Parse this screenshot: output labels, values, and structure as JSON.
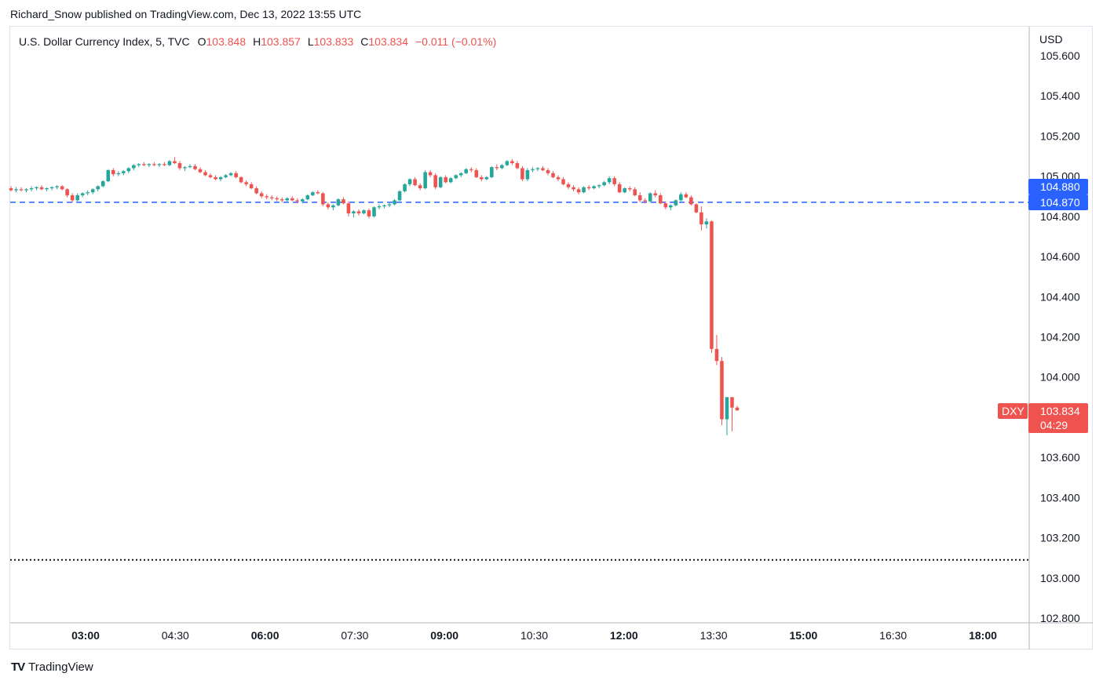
{
  "header": {
    "publisher_line": "Richard_Snow published on TradingView.com, Dec 13, 2022 13:55 UTC"
  },
  "legend": {
    "symbol": "U.S. Dollar Currency Index, 5, TVC",
    "open_label": "O",
    "open": "103.848",
    "high_label": "H",
    "high": "103.857",
    "low_label": "L",
    "low": "103.833",
    "close_label": "C",
    "close": "103.834",
    "change": "−0.011 (−0.01%)"
  },
  "price_axis": {
    "currency": "USD"
  },
  "badges": {
    "upper_price": "104.880",
    "line_price": "104.870",
    "ticker": "DXY",
    "last_price": "103.834",
    "countdown": "04:29"
  },
  "footer": {
    "brand_mark": "TV",
    "brand": "TradingView"
  },
  "colors": {
    "up": "#26a69a",
    "down": "#ef5350",
    "accent": "#2962ff",
    "line": "#2962ff"
  },
  "chart_data": {
    "type": "candlestick",
    "ylim": [
      102.8,
      105.65
    ],
    "y_ticks": [
      "105.600",
      "105.400",
      "105.200",
      "105.000",
      "104.800",
      "104.600",
      "104.400",
      "104.200",
      "104.000",
      "103.600",
      "103.400",
      "103.200",
      "103.000",
      "102.800"
    ],
    "x_ticks": [
      {
        "label": "03:00",
        "bold": true
      },
      {
        "label": "04:30",
        "bold": false
      },
      {
        "label": "06:00",
        "bold": true
      },
      {
        "label": "07:30",
        "bold": false
      },
      {
        "label": "09:00",
        "bold": true
      },
      {
        "label": "10:30",
        "bold": false
      },
      {
        "label": "12:00",
        "bold": true
      },
      {
        "label": "13:30",
        "bold": false
      },
      {
        "label": "15:00",
        "bold": true
      },
      {
        "label": "16:30",
        "bold": false
      },
      {
        "label": "18:00",
        "bold": true
      }
    ],
    "horizontal_lines": [
      {
        "price": 104.87,
        "style": "dashed",
        "color": "#2962ff"
      },
      {
        "price": 103.09,
        "style": "dotted",
        "color": "#131722"
      }
    ],
    "candles": [
      [
        104.94,
        104.95,
        104.925,
        104.93
      ],
      [
        104.93,
        104.945,
        104.92,
        104.935
      ],
      [
        104.935,
        104.945,
        104.925,
        104.93
      ],
      [
        104.93,
        104.94,
        104.92,
        104.935
      ],
      [
        104.935,
        104.95,
        104.925,
        104.94
      ],
      [
        104.94,
        104.95,
        104.93,
        104.945
      ],
      [
        104.945,
        104.955,
        104.93,
        104.935
      ],
      [
        104.935,
        104.945,
        104.925,
        104.94
      ],
      [
        104.94,
        104.95,
        104.93,
        104.945
      ],
      [
        104.945,
        104.955,
        104.935,
        104.95
      ],
      [
        104.95,
        104.955,
        104.93,
        104.935
      ],
      [
        104.935,
        104.94,
        104.895,
        104.905
      ],
      [
        104.905,
        104.915,
        104.87,
        104.88
      ],
      [
        104.88,
        104.915,
        104.875,
        104.905
      ],
      [
        104.905,
        104.92,
        104.895,
        104.915
      ],
      [
        104.915,
        104.93,
        104.905,
        104.92
      ],
      [
        104.92,
        104.94,
        104.91,
        104.935
      ],
      [
        104.935,
        104.955,
        104.925,
        104.95
      ],
      [
        104.95,
        104.98,
        104.945,
        104.975
      ],
      [
        104.975,
        105.035,
        104.97,
        105.03
      ],
      [
        105.03,
        105.04,
        105.0,
        105.01
      ],
      [
        105.01,
        105.025,
        105.0,
        105.015
      ],
      [
        105.015,
        105.03,
        105.005,
        105.025
      ],
      [
        105.025,
        105.045,
        105.015,
        105.04
      ],
      [
        105.04,
        105.06,
        105.03,
        105.055
      ],
      [
        105.055,
        105.065,
        105.045,
        105.06
      ],
      [
        105.06,
        105.07,
        105.05,
        105.055
      ],
      [
        105.055,
        105.065,
        105.045,
        105.06
      ],
      [
        105.06,
        105.07,
        105.05,
        105.055
      ],
      [
        105.055,
        105.065,
        105.045,
        105.06
      ],
      [
        105.06,
        105.07,
        105.05,
        105.055
      ],
      [
        105.055,
        105.08,
        105.05,
        105.075
      ],
      [
        105.075,
        105.095,
        105.06,
        105.065
      ],
      [
        105.065,
        105.075,
        105.03,
        105.04
      ],
      [
        105.04,
        105.05,
        105.025,
        105.045
      ],
      [
        105.045,
        105.06,
        105.04,
        105.05
      ],
      [
        105.05,
        105.06,
        105.03,
        105.035
      ],
      [
        105.035,
        105.045,
        105.015,
        105.02
      ],
      [
        105.02,
        105.03,
        105.0,
        105.005
      ],
      [
        105.005,
        105.015,
        104.99,
        104.995
      ],
      [
        104.995,
        105.005,
        104.98,
        104.985
      ],
      [
        104.985,
        105.0,
        104.975,
        104.995
      ],
      [
        104.995,
        105.01,
        104.99,
        105.005
      ],
      [
        105.005,
        105.02,
        105.0,
        105.015
      ],
      [
        105.015,
        105.025,
        104.99,
        104.995
      ],
      [
        104.995,
        105.0,
        104.965,
        104.97
      ],
      [
        104.97,
        104.98,
        104.95,
        104.96
      ],
      [
        104.96,
        104.97,
        104.935,
        104.94
      ],
      [
        104.94,
        104.95,
        104.91,
        104.915
      ],
      [
        104.915,
        104.925,
        104.89,
        104.9
      ],
      [
        104.9,
        104.91,
        104.885,
        104.895
      ],
      [
        104.895,
        104.905,
        104.88,
        104.89
      ],
      [
        104.89,
        104.9,
        104.875,
        104.885
      ],
      [
        104.885,
        104.895,
        104.87,
        104.88
      ],
      [
        104.88,
        104.895,
        104.87,
        104.89
      ],
      [
        104.89,
        104.9,
        104.875,
        104.88
      ],
      [
        104.88,
        104.89,
        104.865,
        104.875
      ],
      [
        104.875,
        104.89,
        104.865,
        104.885
      ],
      [
        104.885,
        104.91,
        104.88,
        104.905
      ],
      [
        104.905,
        104.925,
        104.9,
        104.92
      ],
      [
        104.92,
        104.93,
        104.91,
        104.915
      ],
      [
        104.915,
        104.92,
        104.85,
        104.86
      ],
      [
        104.86,
        104.87,
        104.835,
        104.845
      ],
      [
        104.845,
        104.86,
        104.83,
        104.855
      ],
      [
        104.855,
        104.89,
        104.85,
        104.885
      ],
      [
        104.885,
        104.895,
        104.86,
        104.865
      ],
      [
        104.865,
        104.875,
        104.8,
        104.815
      ],
      [
        104.815,
        104.83,
        104.795,
        104.825
      ],
      [
        104.825,
        104.835,
        104.805,
        104.815
      ],
      [
        104.815,
        104.835,
        104.81,
        104.83
      ],
      [
        104.83,
        104.84,
        104.79,
        104.8
      ],
      [
        104.8,
        104.85,
        104.795,
        104.845
      ],
      [
        104.845,
        104.86,
        104.835,
        104.85
      ],
      [
        104.85,
        104.86,
        104.84,
        104.855
      ],
      [
        104.855,
        104.87,
        104.845,
        104.86
      ],
      [
        104.86,
        104.885,
        104.855,
        104.88
      ],
      [
        104.88,
        104.93,
        104.875,
        104.925
      ],
      [
        104.925,
        104.965,
        104.92,
        104.96
      ],
      [
        104.96,
        104.99,
        104.95,
        104.985
      ],
      [
        104.985,
        104.995,
        104.95,
        104.955
      ],
      [
        104.955,
        104.965,
        104.93,
        104.94
      ],
      [
        104.94,
        105.03,
        104.935,
        105.02
      ],
      [
        105.02,
        105.03,
        104.995,
        105.005
      ],
      [
        105.005,
        105.015,
        104.935,
        104.945
      ],
      [
        104.945,
        105.0,
        104.94,
        104.995
      ],
      [
        104.995,
        105.005,
        104.965,
        104.97
      ],
      [
        104.97,
        104.995,
        104.965,
        104.99
      ],
      [
        104.99,
        105.01,
        104.985,
        105.005
      ],
      [
        105.005,
        105.02,
        104.995,
        105.015
      ],
      [
        105.015,
        105.04,
        105.01,
        105.035
      ],
      [
        105.035,
        105.045,
        105.02,
        105.03
      ],
      [
        105.03,
        105.04,
        104.99,
        104.995
      ],
      [
        104.995,
        105.005,
        104.975,
        104.985
      ],
      [
        104.985,
        105.0,
        104.98,
        104.995
      ],
      [
        104.995,
        105.05,
        104.99,
        105.045
      ],
      [
        105.045,
        105.06,
        105.03,
        105.04
      ],
      [
        105.04,
        105.06,
        105.035,
        105.055
      ],
      [
        105.055,
        105.08,
        105.05,
        105.075
      ],
      [
        105.075,
        105.085,
        105.055,
        105.065
      ],
      [
        105.065,
        105.075,
        105.035,
        105.04
      ],
      [
        105.04,
        105.05,
        104.975,
        104.985
      ],
      [
        104.985,
        105.04,
        104.975,
        105.03
      ],
      [
        105.03,
        105.045,
        105.02,
        105.035
      ],
      [
        105.035,
        105.045,
        105.025,
        105.04
      ],
      [
        105.04,
        105.05,
        105.025,
        105.03
      ],
      [
        105.03,
        105.04,
        105.005,
        105.015
      ],
      [
        105.015,
        105.025,
        104.99,
        104.995
      ],
      [
        104.995,
        105.005,
        104.975,
        104.985
      ],
      [
        104.985,
        104.995,
        104.955,
        104.96
      ],
      [
        104.96,
        104.97,
        104.935,
        104.945
      ],
      [
        104.945,
        104.955,
        104.925,
        104.935
      ],
      [
        104.935,
        104.945,
        104.91,
        104.92
      ],
      [
        104.92,
        104.95,
        104.915,
        104.945
      ],
      [
        104.945,
        104.955,
        104.93,
        104.94
      ],
      [
        104.94,
        104.955,
        104.935,
        104.95
      ],
      [
        104.95,
        104.96,
        104.94,
        104.955
      ],
      [
        104.955,
        104.975,
        104.95,
        104.97
      ],
      [
        104.97,
        105.0,
        104.96,
        104.99
      ],
      [
        104.99,
        105.0,
        104.95,
        104.96
      ],
      [
        104.96,
        104.97,
        104.915,
        104.92
      ],
      [
        104.92,
        104.945,
        104.915,
        104.94
      ],
      [
        104.94,
        104.95,
        104.925,
        104.935
      ],
      [
        104.935,
        104.945,
        104.9,
        104.905
      ],
      [
        104.905,
        104.92,
        104.87,
        104.88
      ],
      [
        104.88,
        104.89,
        104.865,
        104.875
      ],
      [
        104.875,
        104.92,
        104.87,
        104.915
      ],
      [
        104.915,
        104.93,
        104.895,
        104.905
      ],
      [
        104.905,
        104.915,
        104.86,
        104.865
      ],
      [
        104.865,
        104.875,
        104.835,
        104.845
      ],
      [
        104.845,
        104.86,
        104.83,
        104.855
      ],
      [
        104.855,
        104.885,
        104.85,
        104.88
      ],
      [
        104.88,
        104.92,
        104.875,
        104.91
      ],
      [
        104.91,
        104.92,
        104.89,
        104.895
      ],
      [
        104.895,
        104.905,
        104.855,
        104.86
      ],
      [
        104.86,
        104.865,
        104.815,
        104.82
      ],
      [
        104.82,
        104.85,
        104.73,
        104.76
      ],
      [
        104.76,
        104.79,
        104.74,
        104.775
      ],
      [
        104.775,
        104.78,
        104.12,
        104.14
      ],
      [
        104.14,
        104.21,
        104.06,
        104.08
      ],
      [
        104.08,
        104.1,
        103.76,
        103.79
      ],
      [
        103.79,
        103.9,
        103.71,
        103.9
      ],
      [
        103.9,
        103.9,
        103.73,
        103.848
      ],
      [
        103.848,
        103.857,
        103.833,
        103.834
      ]
    ],
    "last_price": 103.834,
    "y_unit": "USD"
  }
}
